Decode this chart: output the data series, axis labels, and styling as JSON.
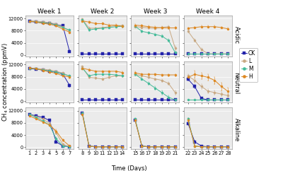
{
  "weeks": [
    "Week 1",
    "Week 2",
    "Week 3",
    "Week 4"
  ],
  "rows": [
    "Acidic",
    "Neutral",
    "Alkaline"
  ],
  "week_days": [
    [
      1,
      2,
      3,
      4,
      5,
      6,
      7
    ],
    [
      8,
      9,
      10,
      11,
      12,
      13,
      14
    ],
    [
      15,
      16,
      17,
      18,
      19,
      20,
      21
    ],
    [
      22,
      23,
      24,
      25,
      26,
      27,
      28
    ]
  ],
  "colors": {
    "CK": "#2222aa",
    "L": "#c8a882",
    "M": "#44bb99",
    "H": "#dd8822"
  },
  "series_names": [
    "CK",
    "L",
    "M",
    "H"
  ],
  "data": {
    "Acidic": {
      "Week 1": {
        "CK": {
          "y": [
            11000,
            10800,
            10600,
            10400,
            10000,
            9600,
            1200
          ],
          "err": [
            150,
            150,
            150,
            150,
            200,
            300,
            400
          ]
        },
        "L": {
          "y": [
            11200,
            11100,
            10900,
            10600,
            10200,
            9200,
            7800
          ],
          "err": [
            150,
            150,
            150,
            200,
            200,
            250,
            350
          ]
        },
        "M": {
          "y": [
            11100,
            10900,
            10600,
            10300,
            9900,
            9000,
            8200
          ],
          "err": [
            150,
            150,
            150,
            150,
            200,
            250,
            300
          ]
        },
        "H": {
          "y": [
            11100,
            10800,
            10400,
            10100,
            9600,
            8500,
            7500
          ],
          "err": [
            150,
            150,
            200,
            200,
            250,
            300,
            350
          ]
        }
      },
      "Week 2": {
        "CK": {
          "y": [
            400,
            400,
            400,
            400,
            400,
            400,
            400
          ],
          "err": [
            80,
            80,
            80,
            80,
            80,
            80,
            80
          ]
        },
        "L": {
          "y": [
            11800,
            8800,
            8800,
            9000,
            9300,
            9600,
            9700
          ],
          "err": [
            300,
            350,
            300,
            300,
            300,
            300,
            300
          ]
        },
        "M": {
          "y": [
            11600,
            8200,
            8600,
            8800,
            9000,
            9300,
            9400
          ],
          "err": [
            300,
            350,
            300,
            300,
            300,
            300,
            300
          ]
        },
        "H": {
          "y": [
            11200,
            10800,
            10300,
            10300,
            9800,
            9800,
            9400
          ],
          "err": [
            300,
            300,
            300,
            300,
            300,
            300,
            350
          ]
        }
      },
      "Week 3": {
        "CK": {
          "y": [
            400,
            400,
            400,
            400,
            400,
            400,
            400
          ],
          "err": [
            80,
            80,
            80,
            80,
            80,
            80,
            80
          ]
        },
        "L": {
          "y": [
            9300,
            9100,
            8900,
            8700,
            9100,
            9300,
            2200
          ],
          "err": [
            300,
            300,
            300,
            300,
            350,
            450,
            700
          ]
        },
        "M": {
          "y": [
            9400,
            7800,
            7300,
            6800,
            6200,
            4800,
            800
          ],
          "err": [
            300,
            300,
            300,
            350,
            400,
            450,
            400
          ]
        },
        "H": {
          "y": [
            9800,
            9600,
            9300,
            9100,
            8900,
            8900,
            8900
          ],
          "err": [
            300,
            300,
            300,
            300,
            300,
            300,
            300
          ]
        }
      },
      "Week 4": {
        "CK": {
          "y": [
            400,
            400,
            400,
            400,
            400,
            400,
            400
          ],
          "err": [
            80,
            80,
            80,
            80,
            80,
            80,
            80
          ]
        },
        "L": {
          "y": [
            7800,
            4800,
            1800,
            400,
            400,
            400,
            400
          ],
          "err": [
            350,
            450,
            500,
            150,
            150,
            150,
            150
          ]
        },
        "M": {
          "y": [
            400,
            400,
            400,
            400,
            400,
            400,
            400
          ],
          "err": [
            80,
            80,
            80,
            80,
            80,
            80,
            80
          ]
        },
        "H": {
          "y": [
            8800,
            9000,
            9300,
            9300,
            9300,
            9000,
            8600
          ],
          "err": [
            300,
            300,
            300,
            300,
            300,
            300,
            350
          ]
        }
      }
    },
    "Neutral": {
      "Week 1": {
        "CK": {
          "y": [
            10600,
            10500,
            10200,
            9800,
            9500,
            8900,
            5200
          ],
          "err": [
            150,
            150,
            150,
            150,
            200,
            250,
            450
          ]
        },
        "L": {
          "y": [
            10800,
            10700,
            10500,
            10200,
            9800,
            9200,
            8100
          ],
          "err": [
            150,
            150,
            150,
            150,
            200,
            250,
            350
          ]
        },
        "M": {
          "y": [
            10800,
            10600,
            10200,
            9900,
            9500,
            8900,
            8300
          ],
          "err": [
            150,
            150,
            150,
            150,
            200,
            250,
            300
          ]
        },
        "H": {
          "y": [
            10900,
            10600,
            10100,
            9600,
            9100,
            8300,
            7900
          ],
          "err": [
            150,
            150,
            200,
            200,
            250,
            300,
            350
          ]
        }
      },
      "Week 2": {
        "CK": {
          "y": [
            400,
            400,
            400,
            400,
            400,
            400,
            400
          ],
          "err": [
            80,
            80,
            80,
            80,
            80,
            80,
            80
          ]
        },
        "L": {
          "y": [
            11300,
            7800,
            7600,
            7300,
            7800,
            8300,
            8300
          ],
          "err": [
            300,
            450,
            350,
            350,
            350,
            350,
            350
          ]
        },
        "M": {
          "y": [
            10800,
            8300,
            8800,
            8800,
            8800,
            8600,
            8300
          ],
          "err": [
            300,
            350,
            300,
            300,
            300,
            300,
            300
          ]
        },
        "H": {
          "y": [
            10800,
            10300,
            9800,
            9800,
            9800,
            9800,
            9400
          ],
          "err": [
            300,
            300,
            300,
            300,
            300,
            300,
            350
          ]
        }
      },
      "Week 3": {
        "CK": {
          "y": [
            400,
            400,
            400,
            400,
            400,
            400,
            400
          ],
          "err": [
            80,
            80,
            80,
            80,
            80,
            80,
            80
          ]
        },
        "L": {
          "y": [
            8800,
            8300,
            7800,
            7300,
            6800,
            5800,
            2800
          ],
          "err": [
            350,
            350,
            350,
            350,
            450,
            550,
            650
          ]
        },
        "M": {
          "y": [
            8800,
            7300,
            5800,
            4300,
            2800,
            1300,
            400
          ],
          "err": [
            350,
            350,
            450,
            550,
            600,
            600,
            300
          ]
        },
        "H": {
          "y": [
            9300,
            8800,
            8800,
            8800,
            8600,
            8600,
            8600
          ],
          "err": [
            350,
            350,
            350,
            350,
            350,
            350,
            350
          ]
        }
      },
      "Week 4": {
        "CK": {
          "y": [
            7200,
            4800,
            900,
            400,
            400,
            400,
            400
          ],
          "err": [
            450,
            550,
            400,
            150,
            150,
            150,
            150
          ]
        },
        "L": {
          "y": [
            8300,
            6800,
            4800,
            3300,
            2800,
            2300,
            1800
          ],
          "err": [
            550,
            750,
            850,
            650,
            650,
            650,
            650
          ]
        },
        "M": {
          "y": [
            400,
            400,
            400,
            400,
            400,
            400,
            400
          ],
          "err": [
            80,
            80,
            80,
            80,
            80,
            80,
            80
          ]
        },
        "H": {
          "y": [
            7800,
            8800,
            8300,
            7800,
            6800,
            4800,
            3200
          ],
          "err": [
            550,
            1100,
            1100,
            1100,
            1100,
            1300,
            1300
          ]
        }
      }
    },
    "Alkaline": {
      "Week 1": {
        "CK": {
          "y": [
            10800,
            10300,
            9800,
            8800,
            1800,
            400,
            150
          ],
          "err": [
            150,
            200,
            200,
            250,
            350,
            150,
            80
          ]
        },
        "L": {
          "y": [
            10800,
            10000,
            9300,
            7800,
            4800,
            900,
            250
          ],
          "err": [
            150,
            200,
            200,
            250,
            450,
            350,
            150
          ]
        },
        "M": {
          "y": [
            10800,
            9800,
            8600,
            7300,
            2800,
            400,
            150
          ],
          "err": [
            150,
            200,
            250,
            350,
            450,
            150,
            80
          ]
        },
        "H": {
          "y": [
            10300,
            9300,
            8300,
            7300,
            5300,
            2300,
            450
          ],
          "err": [
            150,
            250,
            250,
            350,
            550,
            450,
            150
          ]
        }
      },
      "Week 2": {
        "CK": {
          "y": [
            11300,
            400,
            150,
            150,
            150,
            150,
            150
          ],
          "err": [
            250,
            150,
            80,
            80,
            80,
            80,
            80
          ]
        },
        "L": {
          "y": [
            11300,
            400,
            150,
            150,
            150,
            150,
            150
          ],
          "err": [
            250,
            150,
            80,
            80,
            80,
            80,
            80
          ]
        },
        "M": {
          "y": [
            11300,
            400,
            150,
            150,
            150,
            150,
            150
          ],
          "err": [
            250,
            150,
            80,
            80,
            80,
            80,
            80
          ]
        },
        "H": {
          "y": [
            10800,
            400,
            150,
            150,
            150,
            150,
            150
          ],
          "err": [
            250,
            150,
            80,
            80,
            80,
            80,
            80
          ]
        }
      },
      "Week 3": {
        "CK": {
          "y": [
            8800,
            400,
            150,
            150,
            150,
            150,
            150
          ],
          "err": [
            250,
            150,
            80,
            80,
            80,
            80,
            80
          ]
        },
        "L": {
          "y": [
            8800,
            400,
            150,
            150,
            150,
            150,
            150
          ],
          "err": [
            250,
            150,
            80,
            80,
            80,
            80,
            80
          ]
        },
        "M": {
          "y": [
            9300,
            400,
            150,
            150,
            150,
            150,
            150
          ],
          "err": [
            250,
            150,
            80,
            80,
            80,
            80,
            80
          ]
        },
        "H": {
          "y": [
            8800,
            400,
            150,
            150,
            150,
            150,
            150
          ],
          "err": [
            250,
            150,
            80,
            80,
            80,
            80,
            80
          ]
        }
      },
      "Week 4": {
        "CK": {
          "y": [
            7800,
            1800,
            400,
            150,
            150,
            150,
            150
          ],
          "err": [
            350,
            450,
            150,
            80,
            80,
            80,
            80
          ]
        },
        "L": {
          "y": [
            9300,
            400,
            150,
            150,
            150,
            150,
            150
          ],
          "err": [
            250,
            150,
            80,
            80,
            80,
            80,
            80
          ]
        },
        "M": {
          "y": [
            9300,
            400,
            150,
            150,
            150,
            150,
            150
          ],
          "err": [
            250,
            150,
            80,
            80,
            80,
            80,
            80
          ]
        },
        "H": {
          "y": [
            8800,
            400,
            150,
            150,
            150,
            150,
            150
          ],
          "err": [
            250,
            150,
            80,
            80,
            80,
            80,
            80
          ]
        }
      }
    }
  },
  "ylim": [
    -500,
    13000
  ],
  "yticks": [
    0,
    4000,
    8000,
    12000
  ],
  "bg_color": "#ebebeb",
  "title_fontsize": 6.5,
  "label_fontsize": 6,
  "tick_fontsize": 4.8,
  "row_label_fontsize": 6,
  "legend_fontsize": 5.5
}
